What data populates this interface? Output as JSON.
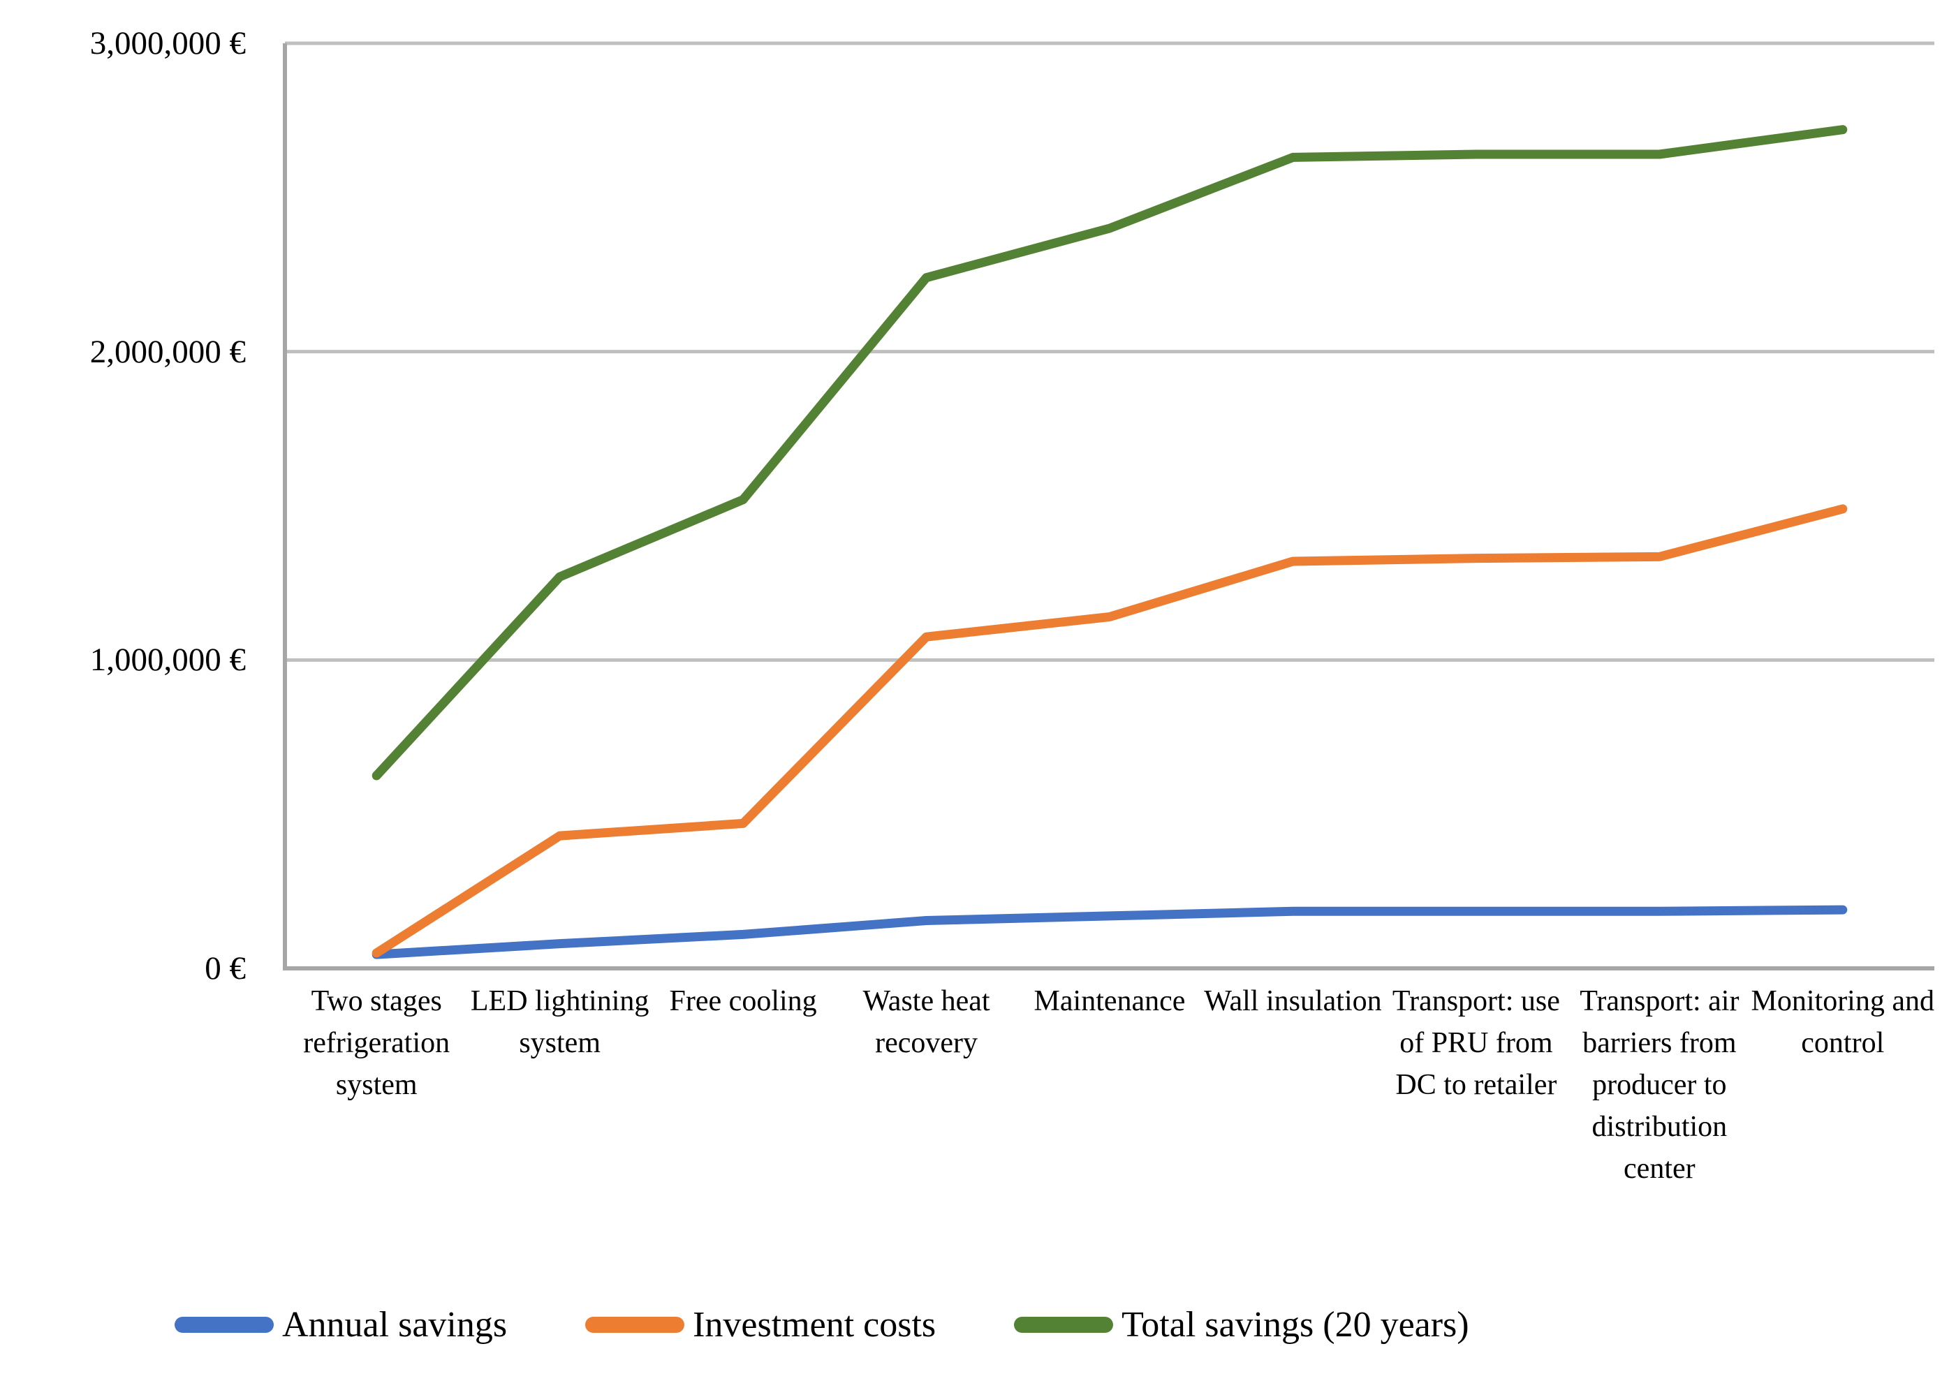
{
  "chart_data": {
    "type": "line",
    "title": "",
    "xlabel": "",
    "ylabel": "",
    "categories": [
      "Two stages refrigeration system",
      "LED lightining system",
      "Free cooling",
      "Waste heat recovery",
      "Maintenance",
      "Wall insulation",
      "Transport: use of PRU from DC to retailer",
      "Transport: air barriers from producer to distribution center",
      "Monitoring and control"
    ],
    "series": [
      {
        "name": "Annual savings",
        "color": "#4472C4",
        "values": [
          45000,
          80000,
          110000,
          155000,
          170000,
          185000,
          185000,
          185000,
          190000
        ]
      },
      {
        "name": "Investment costs",
        "color": "#ED7D31",
        "values": [
          50000,
          430000,
          470000,
          1075000,
          1140000,
          1320000,
          1330000,
          1335000,
          1490000
        ]
      },
      {
        "name": "Total savings (20 years)",
        "color": "#548235",
        "values": [
          625000,
          1270000,
          1520000,
          2240000,
          2400000,
          2630000,
          2640000,
          2640000,
          2720000
        ]
      }
    ],
    "y_ticks": [
      {
        "label": "0 €",
        "value": 0
      },
      {
        "label": "1,000,000 €",
        "value": 1000000
      },
      {
        "label": "2,000,000 €",
        "value": 2000000
      },
      {
        "label": "3,000,000 €",
        "value": 3000000
      }
    ],
    "ylim": [
      0,
      3000000
    ],
    "grid": "horizontal",
    "legend_position": "bottom",
    "colors": {
      "background": "#FFFFFF",
      "gridline": "#BFBFBF",
      "axis": "#A6A6A6",
      "text": "#000000"
    }
  }
}
